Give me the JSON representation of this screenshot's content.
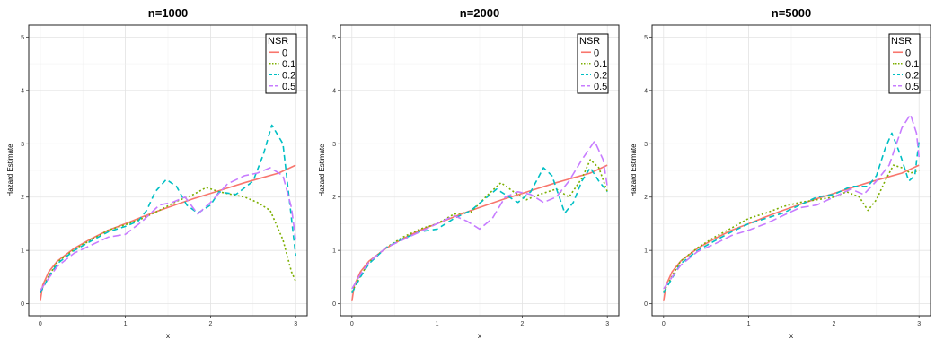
{
  "chart_data": [
    {
      "type": "line",
      "title": "n=1000",
      "xlabel": "x",
      "ylabel": "Hazard Estimate",
      "xlim": [
        0,
        3
      ],
      "ylim": [
        0,
        5
      ],
      "x_ticks": [
        0,
        1,
        2,
        3
      ],
      "y_ticks": [
        0,
        1,
        2,
        3,
        4,
        5
      ],
      "grid": true,
      "legend": {
        "title": "NSR",
        "position": "top-right"
      },
      "series": [
        {
          "name": "0",
          "color": "#F8766D",
          "dash": "solid",
          "points": [
            [
              0,
              0.05
            ],
            [
              0.03,
              0.35
            ],
            [
              0.1,
              0.6
            ],
            [
              0.2,
              0.8
            ],
            [
              0.4,
              1.04
            ],
            [
              0.6,
              1.22
            ],
            [
              0.8,
              1.38
            ],
            [
              1.0,
              1.5
            ],
            [
              1.2,
              1.63
            ],
            [
              1.4,
              1.75
            ],
            [
              1.6,
              1.86
            ],
            [
              1.8,
              1.97
            ],
            [
              2.0,
              2.07
            ],
            [
              2.2,
              2.17
            ],
            [
              2.4,
              2.27
            ],
            [
              2.6,
              2.36
            ],
            [
              2.8,
              2.45
            ],
            [
              3.0,
              2.6
            ]
          ]
        },
        {
          "name": "0.1",
          "color": "#7CAE00",
          "dash": "dotted",
          "points": [
            [
              0,
              0.22
            ],
            [
              0.1,
              0.52
            ],
            [
              0.2,
              0.78
            ],
            [
              0.4,
              1.02
            ],
            [
              0.6,
              1.2
            ],
            [
              0.8,
              1.38
            ],
            [
              1.0,
              1.48
            ],
            [
              1.2,
              1.6
            ],
            [
              1.4,
              1.75
            ],
            [
              1.6,
              1.92
            ],
            [
              1.8,
              2.05
            ],
            [
              1.95,
              2.18
            ],
            [
              2.1,
              2.1
            ],
            [
              2.25,
              2.05
            ],
            [
              2.4,
              2.0
            ],
            [
              2.55,
              1.9
            ],
            [
              2.7,
              1.75
            ],
            [
              2.85,
              1.2
            ],
            [
              2.95,
              0.6
            ],
            [
              3.0,
              0.42
            ]
          ]
        },
        {
          "name": "0.2",
          "color": "#00BFC4",
          "dash": "dashed",
          "points": [
            [
              0,
              0.2
            ],
            [
              0.1,
              0.5
            ],
            [
              0.2,
              0.75
            ],
            [
              0.4,
              1.0
            ],
            [
              0.6,
              1.18
            ],
            [
              0.8,
              1.35
            ],
            [
              1.0,
              1.45
            ],
            [
              1.15,
              1.55
            ],
            [
              1.25,
              1.75
            ],
            [
              1.35,
              2.1
            ],
            [
              1.48,
              2.33
            ],
            [
              1.6,
              2.2
            ],
            [
              1.72,
              1.85
            ],
            [
              1.85,
              1.7
            ],
            [
              2.0,
              1.85
            ],
            [
              2.1,
              2.1
            ],
            [
              2.3,
              2.05
            ],
            [
              2.5,
              2.3
            ],
            [
              2.62,
              2.8
            ],
            [
              2.72,
              3.35
            ],
            [
              2.85,
              3.0
            ],
            [
              2.95,
              1.6
            ],
            [
              3.0,
              0.9
            ]
          ]
        },
        {
          "name": "0.5",
          "color": "#C77CFF",
          "dash": "longdash",
          "points": [
            [
              0,
              0.25
            ],
            [
              0.1,
              0.48
            ],
            [
              0.2,
              0.7
            ],
            [
              0.4,
              0.95
            ],
            [
              0.6,
              1.1
            ],
            [
              0.8,
              1.25
            ],
            [
              1.0,
              1.3
            ],
            [
              1.2,
              1.55
            ],
            [
              1.4,
              1.85
            ],
            [
              1.55,
              1.9
            ],
            [
              1.7,
              2.0
            ],
            [
              1.85,
              1.68
            ],
            [
              2.0,
              1.9
            ],
            [
              2.2,
              2.25
            ],
            [
              2.4,
              2.4
            ],
            [
              2.55,
              2.45
            ],
            [
              2.7,
              2.55
            ],
            [
              2.85,
              2.4
            ],
            [
              2.95,
              1.8
            ],
            [
              3.0,
              1.2
            ]
          ]
        }
      ]
    },
    {
      "type": "line",
      "title": "n=2000",
      "xlabel": "x",
      "ylabel": "Hazard Estimate",
      "xlim": [
        0,
        3
      ],
      "ylim": [
        0,
        5
      ],
      "x_ticks": [
        0,
        1,
        2,
        3
      ],
      "y_ticks": [
        0,
        1,
        2,
        3,
        4,
        5
      ],
      "grid": true,
      "legend": {
        "title": "NSR",
        "position": "top-right"
      },
      "series": [
        {
          "name": "0",
          "color": "#F8766D",
          "dash": "solid",
          "points": [
            [
              0,
              0.05
            ],
            [
              0.03,
              0.35
            ],
            [
              0.1,
              0.6
            ],
            [
              0.2,
              0.8
            ],
            [
              0.4,
              1.04
            ],
            [
              0.6,
              1.22
            ],
            [
              0.8,
              1.38
            ],
            [
              1.0,
              1.5
            ],
            [
              1.2,
              1.63
            ],
            [
              1.4,
              1.75
            ],
            [
              1.6,
              1.86
            ],
            [
              1.8,
              1.97
            ],
            [
              2.0,
              2.07
            ],
            [
              2.2,
              2.17
            ],
            [
              2.4,
              2.27
            ],
            [
              2.6,
              2.36
            ],
            [
              2.8,
              2.45
            ],
            [
              3.0,
              2.6
            ]
          ]
        },
        {
          "name": "0.1",
          "color": "#7CAE00",
          "dash": "dotted",
          "points": [
            [
              0,
              0.22
            ],
            [
              0.1,
              0.52
            ],
            [
              0.2,
              0.78
            ],
            [
              0.4,
              1.05
            ],
            [
              0.6,
              1.25
            ],
            [
              0.8,
              1.4
            ],
            [
              1.0,
              1.5
            ],
            [
              1.2,
              1.68
            ],
            [
              1.4,
              1.72
            ],
            [
              1.6,
              2.05
            ],
            [
              1.75,
              2.27
            ],
            [
              1.9,
              2.1
            ],
            [
              2.05,
              1.95
            ],
            [
              2.2,
              2.05
            ],
            [
              2.4,
              2.15
            ],
            [
              2.55,
              2.0
            ],
            [
              2.7,
              2.35
            ],
            [
              2.8,
              2.7
            ],
            [
              2.9,
              2.55
            ],
            [
              3.0,
              2.1
            ]
          ]
        },
        {
          "name": "0.2",
          "color": "#00BFC4",
          "dash": "dashed",
          "points": [
            [
              0,
              0.2
            ],
            [
              0.1,
              0.5
            ],
            [
              0.2,
              0.75
            ],
            [
              0.4,
              1.05
            ],
            [
              0.6,
              1.22
            ],
            [
              0.8,
              1.35
            ],
            [
              1.0,
              1.4
            ],
            [
              1.2,
              1.6
            ],
            [
              1.4,
              1.75
            ],
            [
              1.55,
              1.95
            ],
            [
              1.7,
              2.15
            ],
            [
              1.8,
              2.05
            ],
            [
              1.95,
              1.9
            ],
            [
              2.1,
              2.1
            ],
            [
              2.25,
              2.55
            ],
            [
              2.35,
              2.4
            ],
            [
              2.5,
              1.7
            ],
            [
              2.6,
              1.9
            ],
            [
              2.7,
              2.3
            ],
            [
              2.8,
              2.55
            ],
            [
              2.9,
              2.3
            ],
            [
              3.0,
              2.1
            ]
          ]
        },
        {
          "name": "0.5",
          "color": "#C77CFF",
          "dash": "longdash",
          "points": [
            [
              0,
              0.28
            ],
            [
              0.1,
              0.55
            ],
            [
              0.2,
              0.78
            ],
            [
              0.4,
              1.05
            ],
            [
              0.6,
              1.2
            ],
            [
              0.8,
              1.35
            ],
            [
              1.0,
              1.5
            ],
            [
              1.2,
              1.65
            ],
            [
              1.35,
              1.55
            ],
            [
              1.5,
              1.4
            ],
            [
              1.65,
              1.6
            ],
            [
              1.8,
              2.0
            ],
            [
              1.95,
              2.1
            ],
            [
              2.1,
              2.05
            ],
            [
              2.25,
              1.9
            ],
            [
              2.4,
              2.0
            ],
            [
              2.55,
              2.3
            ],
            [
              2.7,
              2.7
            ],
            [
              2.85,
              3.05
            ],
            [
              2.95,
              2.7
            ],
            [
              3.0,
              2.2
            ]
          ]
        }
      ]
    },
    {
      "type": "line",
      "title": "n=5000",
      "xlabel": "x",
      "ylabel": "Hazard Estimate",
      "xlim": [
        0,
        3
      ],
      "ylim": [
        0,
        5
      ],
      "x_ticks": [
        0,
        1,
        2,
        3
      ],
      "y_ticks": [
        0,
        1,
        2,
        3,
        4,
        5
      ],
      "grid": true,
      "legend": {
        "title": "NSR",
        "position": "top-right"
      },
      "series": [
        {
          "name": "0",
          "color": "#F8766D",
          "dash": "solid",
          "points": [
            [
              0,
              0.05
            ],
            [
              0.03,
              0.35
            ],
            [
              0.1,
              0.6
            ],
            [
              0.2,
              0.8
            ],
            [
              0.4,
              1.04
            ],
            [
              0.6,
              1.22
            ],
            [
              0.8,
              1.38
            ],
            [
              1.0,
              1.5
            ],
            [
              1.2,
              1.63
            ],
            [
              1.4,
              1.75
            ],
            [
              1.6,
              1.86
            ],
            [
              1.8,
              1.97
            ],
            [
              2.0,
              2.07
            ],
            [
              2.2,
              2.17
            ],
            [
              2.4,
              2.27
            ],
            [
              2.6,
              2.36
            ],
            [
              2.8,
              2.45
            ],
            [
              3.0,
              2.6
            ]
          ]
        },
        {
          "name": "0.1",
          "color": "#7CAE00",
          "dash": "dotted",
          "points": [
            [
              0,
              0.22
            ],
            [
              0.1,
              0.52
            ],
            [
              0.2,
              0.8
            ],
            [
              0.4,
              1.05
            ],
            [
              0.6,
              1.25
            ],
            [
              0.8,
              1.42
            ],
            [
              1.0,
              1.6
            ],
            [
              1.2,
              1.7
            ],
            [
              1.4,
              1.82
            ],
            [
              1.6,
              1.9
            ],
            [
              1.8,
              1.95
            ],
            [
              2.0,
              2.0
            ],
            [
              2.15,
              2.1
            ],
            [
              2.3,
              2.0
            ],
            [
              2.4,
              1.75
            ],
            [
              2.5,
              1.95
            ],
            [
              2.6,
              2.3
            ],
            [
              2.7,
              2.6
            ],
            [
              2.8,
              2.55
            ],
            [
              2.9,
              2.45
            ],
            [
              3.0,
              2.5
            ]
          ]
        },
        {
          "name": "0.2",
          "color": "#00BFC4",
          "dash": "dashed",
          "points": [
            [
              0,
              0.2
            ],
            [
              0.1,
              0.48
            ],
            [
              0.2,
              0.75
            ],
            [
              0.4,
              1.0
            ],
            [
              0.6,
              1.18
            ],
            [
              0.8,
              1.35
            ],
            [
              1.0,
              1.5
            ],
            [
              1.2,
              1.6
            ],
            [
              1.4,
              1.7
            ],
            [
              1.6,
              1.85
            ],
            [
              1.8,
              2.0
            ],
            [
              2.0,
              2.05
            ],
            [
              2.2,
              2.2
            ],
            [
              2.4,
              2.2
            ],
            [
              2.5,
              2.4
            ],
            [
              2.6,
              2.9
            ],
            [
              2.68,
              3.2
            ],
            [
              2.78,
              2.8
            ],
            [
              2.88,
              2.3
            ],
            [
              2.95,
              2.4
            ],
            [
              3.0,
              3.05
            ]
          ]
        },
        {
          "name": "0.5",
          "color": "#C77CFF",
          "dash": "longdash",
          "points": [
            [
              0,
              0.28
            ],
            [
              0.1,
              0.5
            ],
            [
              0.2,
              0.72
            ],
            [
              0.4,
              0.98
            ],
            [
              0.6,
              1.12
            ],
            [
              0.8,
              1.28
            ],
            [
              1.0,
              1.38
            ],
            [
              1.2,
              1.5
            ],
            [
              1.4,
              1.65
            ],
            [
              1.6,
              1.8
            ],
            [
              1.8,
              1.85
            ],
            [
              2.0,
              2.0
            ],
            [
              2.2,
              2.15
            ],
            [
              2.35,
              2.05
            ],
            [
              2.5,
              2.3
            ],
            [
              2.65,
              2.6
            ],
            [
              2.8,
              3.3
            ],
            [
              2.9,
              3.55
            ],
            [
              2.97,
              3.2
            ],
            [
              3.0,
              2.75
            ]
          ]
        }
      ]
    }
  ]
}
